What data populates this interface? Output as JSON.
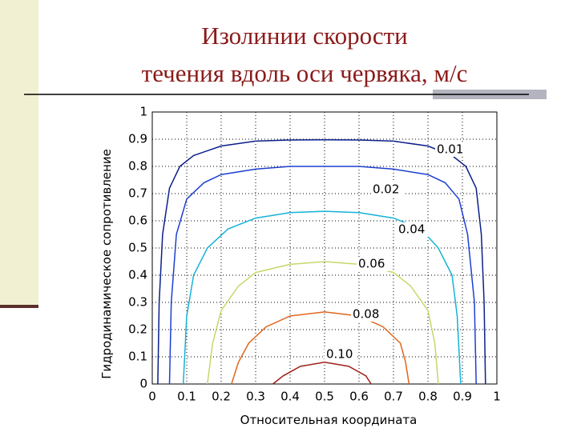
{
  "chart_data": {
    "type": "line",
    "title": [
      "Изолинии скорости",
      "течения вдоль оси червяка, м/с"
    ],
    "x_label": "Относительная координата",
    "y_label": "Гидродинамическое сопротивление",
    "xlim": [
      0,
      1
    ],
    "ylim": [
      0,
      1
    ],
    "xticks": [
      0,
      0.1,
      0.2,
      0.3,
      0.4,
      0.5,
      0.6,
      0.7,
      0.8,
      0.9,
      1
    ],
    "yticks": [
      0,
      0.1,
      0.2,
      0.3,
      0.4,
      0.5,
      0.6,
      0.7,
      0.8,
      0.9,
      1
    ],
    "grid": true,
    "series": [
      {
        "name": "0.01",
        "color": "#0c1f8a",
        "x": [
          0.016,
          0.02,
          0.03,
          0.05,
          0.08,
          0.12,
          0.2,
          0.3,
          0.4,
          0.5,
          0.6,
          0.7,
          0.8,
          0.87,
          0.91,
          0.94,
          0.955,
          0.963,
          0.967
        ],
        "values": [
          0,
          0.3,
          0.55,
          0.72,
          0.8,
          0.84,
          0.875,
          0.893,
          0.897,
          0.898,
          0.897,
          0.893,
          0.875,
          0.84,
          0.8,
          0.72,
          0.55,
          0.3,
          0
        ]
      },
      {
        "name": "0.02",
        "color": "#1c3fd0",
        "x": [
          0.05,
          0.055,
          0.07,
          0.1,
          0.15,
          0.2,
          0.3,
          0.4,
          0.5,
          0.6,
          0.7,
          0.8,
          0.85,
          0.89,
          0.915,
          0.935,
          0.94
        ],
        "values": [
          0,
          0.3,
          0.55,
          0.68,
          0.74,
          0.77,
          0.79,
          0.8,
          0.8,
          0.8,
          0.79,
          0.77,
          0.74,
          0.68,
          0.55,
          0.3,
          0
        ]
      },
      {
        "name": "0.04",
        "color": "#14b2d8",
        "x": [
          0.09,
          0.1,
          0.12,
          0.16,
          0.22,
          0.3,
          0.4,
          0.5,
          0.6,
          0.7,
          0.78,
          0.83,
          0.87,
          0.885,
          0.895
        ],
        "values": [
          0,
          0.25,
          0.4,
          0.5,
          0.57,
          0.61,
          0.63,
          0.635,
          0.63,
          0.61,
          0.57,
          0.5,
          0.4,
          0.25,
          0
        ]
      },
      {
        "name": "0.06",
        "color": "#c5d86a",
        "x": [
          0.16,
          0.175,
          0.2,
          0.25,
          0.3,
          0.4,
          0.5,
          0.6,
          0.7,
          0.75,
          0.8,
          0.82,
          0.83
        ],
        "values": [
          0,
          0.15,
          0.27,
          0.36,
          0.41,
          0.44,
          0.45,
          0.44,
          0.41,
          0.36,
          0.27,
          0.15,
          0
        ]
      },
      {
        "name": "0.08",
        "color": "#e0661c",
        "x": [
          0.23,
          0.25,
          0.28,
          0.33,
          0.4,
          0.5,
          0.6,
          0.67,
          0.72,
          0.735,
          0.745
        ],
        "values": [
          0,
          0.08,
          0.15,
          0.21,
          0.25,
          0.265,
          0.25,
          0.21,
          0.15,
          0.08,
          0
        ]
      },
      {
        "name": "0.10",
        "color": "#a02018",
        "x": [
          0.35,
          0.38,
          0.43,
          0.5,
          0.57,
          0.62,
          0.635
        ],
        "values": [
          0,
          0.03,
          0.065,
          0.08,
          0.065,
          0.03,
          0
        ]
      }
    ]
  }
}
